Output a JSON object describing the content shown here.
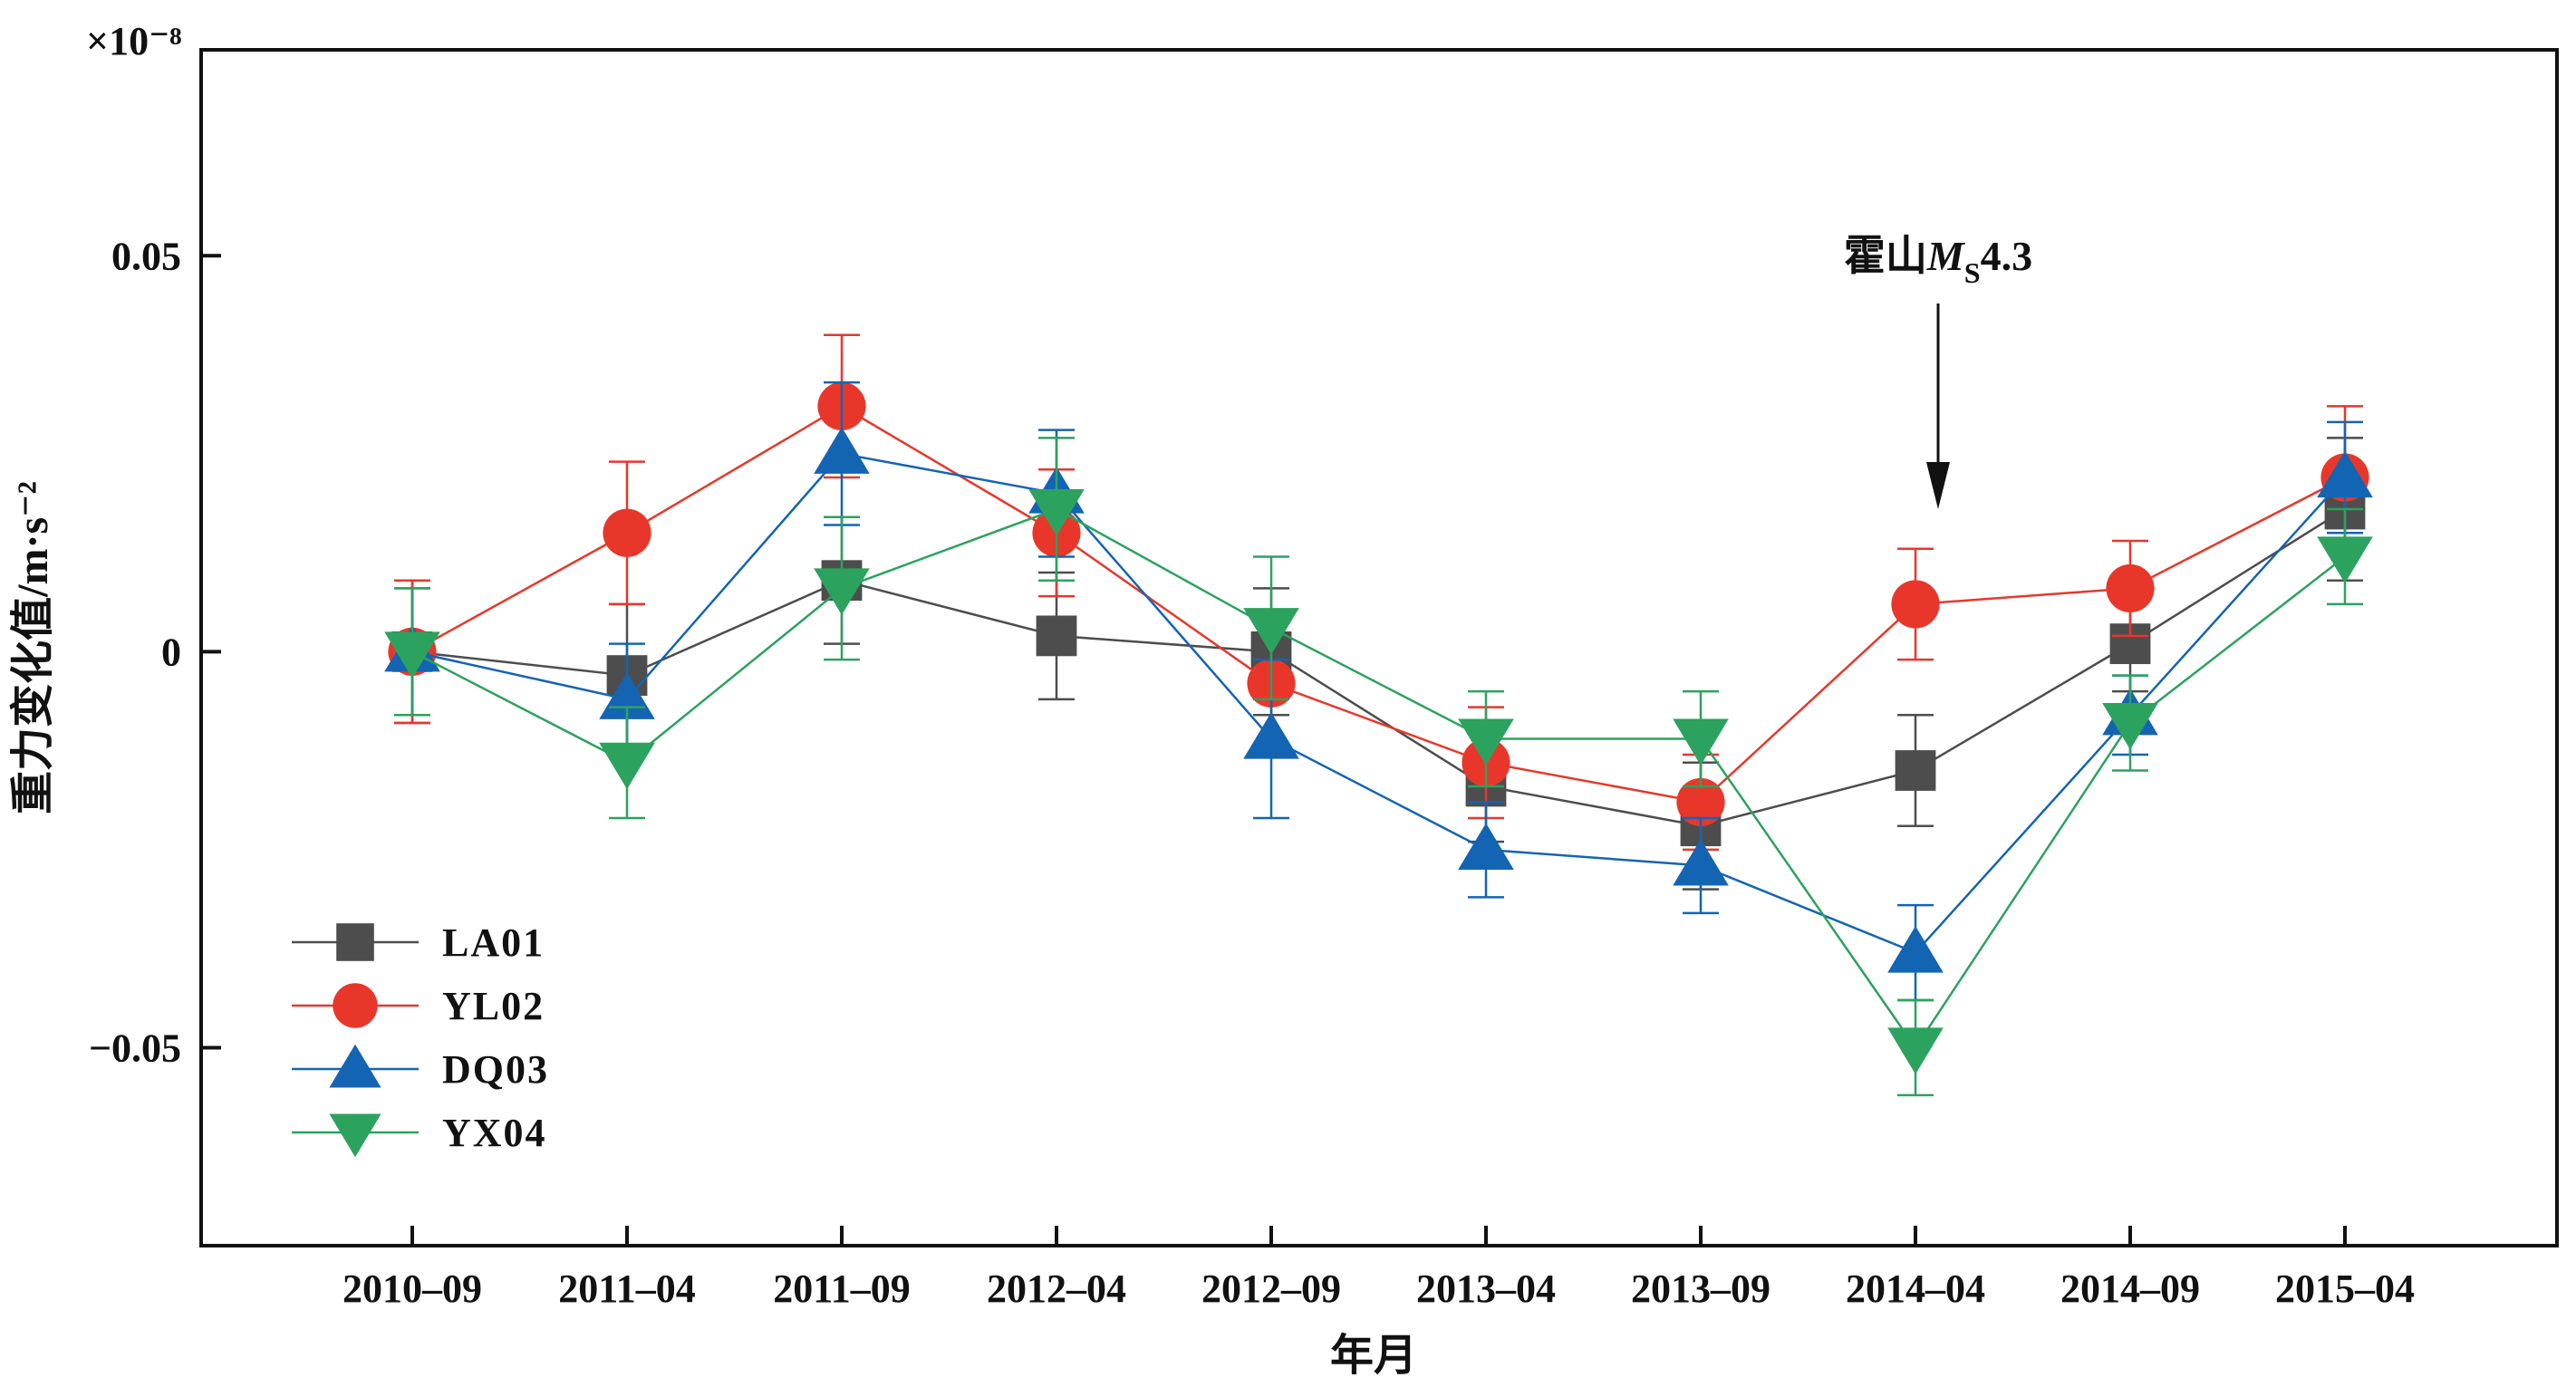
{
  "chart_data": {
    "type": "line",
    "xlabel": "年月",
    "ylabel": "重力变化值/m·s⁻²",
    "y_multiplier": "×10⁻⁸",
    "ylim": [
      -0.075,
      0.076
    ],
    "y_ticks": [
      {
        "value": 0.05,
        "label": "0.05"
      },
      {
        "value": 0,
        "label": "0"
      },
      {
        "value": -0.05,
        "label": "−0.05"
      }
    ],
    "categories": [
      "2010–09",
      "2011–04",
      "2011–09",
      "2012–04",
      "2012–09",
      "2013–04",
      "2013–09",
      "2014–04",
      "2014–09",
      "2015–04"
    ],
    "series": [
      {
        "name": "LA01",
        "color": "#4d4d4d",
        "marker": "square",
        "values": [
          0,
          -0.003,
          0.009,
          0.002,
          0.0,
          -0.017,
          -0.022,
          -0.015,
          0.001,
          0.018
        ],
        "errors": [
          0.009,
          0.009,
          0.008,
          0.008,
          0.008,
          0.007,
          0.008,
          0.007,
          0.006,
          0.009
        ]
      },
      {
        "name": "YL02",
        "color": "#e8372a",
        "marker": "circle",
        "values": [
          0,
          0.015,
          0.031,
          0.015,
          -0.004,
          -0.014,
          -0.019,
          0.006,
          0.008,
          0.022
        ],
        "errors": [
          0.009,
          0.009,
          0.009,
          0.008,
          0.008,
          0.007,
          0.006,
          0.007,
          0.006,
          0.009
        ]
      },
      {
        "name": "DQ03",
        "color": "#1464b4",
        "marker": "triangle-up",
        "values": [
          0,
          -0.006,
          0.025,
          0.02,
          -0.011,
          -0.025,
          -0.027,
          -0.038,
          -0.008,
          0.022
        ],
        "errors": [
          0.008,
          0.007,
          0.009,
          0.008,
          0.01,
          0.006,
          0.006,
          0.006,
          0.005,
          0.007
        ]
      },
      {
        "name": "YX04",
        "color": "#2ca25f",
        "marker": "triangle-down",
        "values": [
          0,
          -0.014,
          0.008,
          0.018,
          0.003,
          -0.011,
          -0.011,
          -0.05,
          -0.009,
          0.012
        ],
        "errors": [
          0.008,
          0.007,
          0.009,
          0.009,
          0.009,
          0.006,
          0.006,
          0.006,
          0.006,
          0.006
        ]
      }
    ],
    "annotation": {
      "text_prefix": "霍山",
      "text_italic": "M",
      "text_subscript": "S",
      "text_suffix": "4.3",
      "category": "2014–04"
    },
    "legend_position": "bottom-left",
    "grid": false
  }
}
